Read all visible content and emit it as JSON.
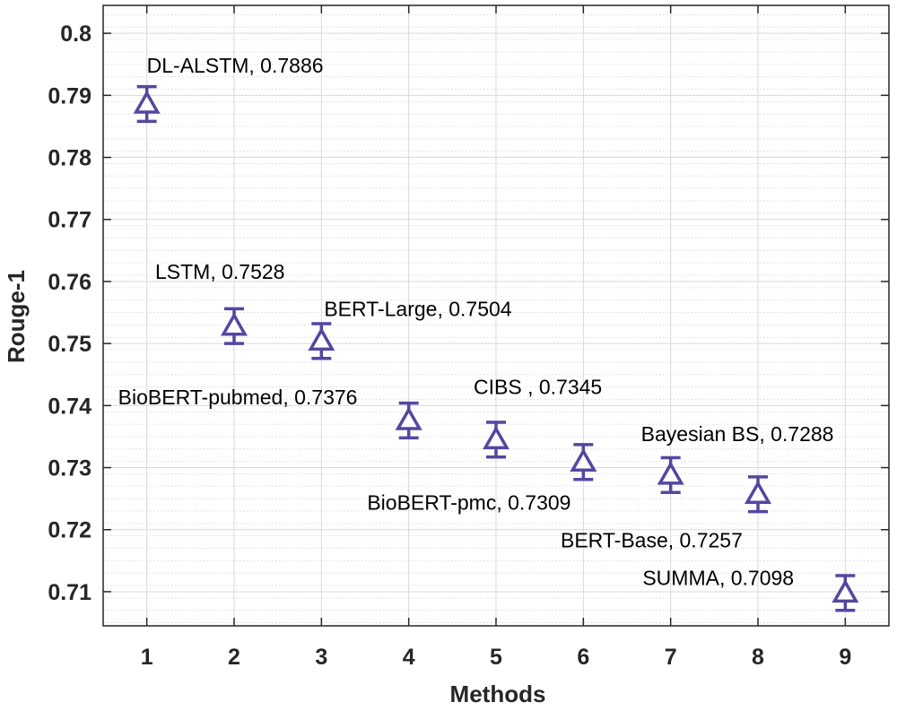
{
  "chart_data": {
    "type": "scatter",
    "title": "",
    "xlabel": "Methods",
    "ylabel": "Rouge-1",
    "xlim": [
      0.5,
      9.5
    ],
    "ylim": [
      0.7045,
      0.8045
    ],
    "xticks": [
      "1",
      "2",
      "3",
      "4",
      "5",
      "6",
      "7",
      "8",
      "9"
    ],
    "yticks": [
      "0.71",
      "0.72",
      "0.73",
      "0.74",
      "0.75",
      "0.76",
      "0.77",
      "0.78",
      "0.79",
      "0.8"
    ],
    "grid": true,
    "marker": "triangle-up",
    "error_bar_halfwidth": 0.0028,
    "points": [
      {
        "x": 1,
        "y": 0.7886,
        "label": "DL-ALSTM, 0.7886"
      },
      {
        "x": 2,
        "y": 0.7528,
        "label": "LSTM, 0.7528"
      },
      {
        "x": 3,
        "y": 0.7504,
        "label": "BERT-Large, 0.7504"
      },
      {
        "x": 4,
        "y": 0.7376,
        "label": "BioBERT-pubmed, 0.7376"
      },
      {
        "x": 5,
        "y": 0.7345,
        "label": "CIBS , 0.7345"
      },
      {
        "x": 6,
        "y": 0.7309,
        "label": "BioBERT-pmc, 0.7309"
      },
      {
        "x": 7,
        "y": 0.7288,
        "label": "Bayesian BS, 0.7288"
      },
      {
        "x": 8,
        "y": 0.7257,
        "label": "BERT-Base, 0.7257"
      },
      {
        "x": 9,
        "y": 0.7098,
        "label": "SUMMA, 0.7098"
      }
    ]
  },
  "colors": {
    "marker": "#5447a0",
    "grid": "#d9d9d9",
    "minor_grid": "#dcdcdc",
    "axis": "#262626"
  }
}
